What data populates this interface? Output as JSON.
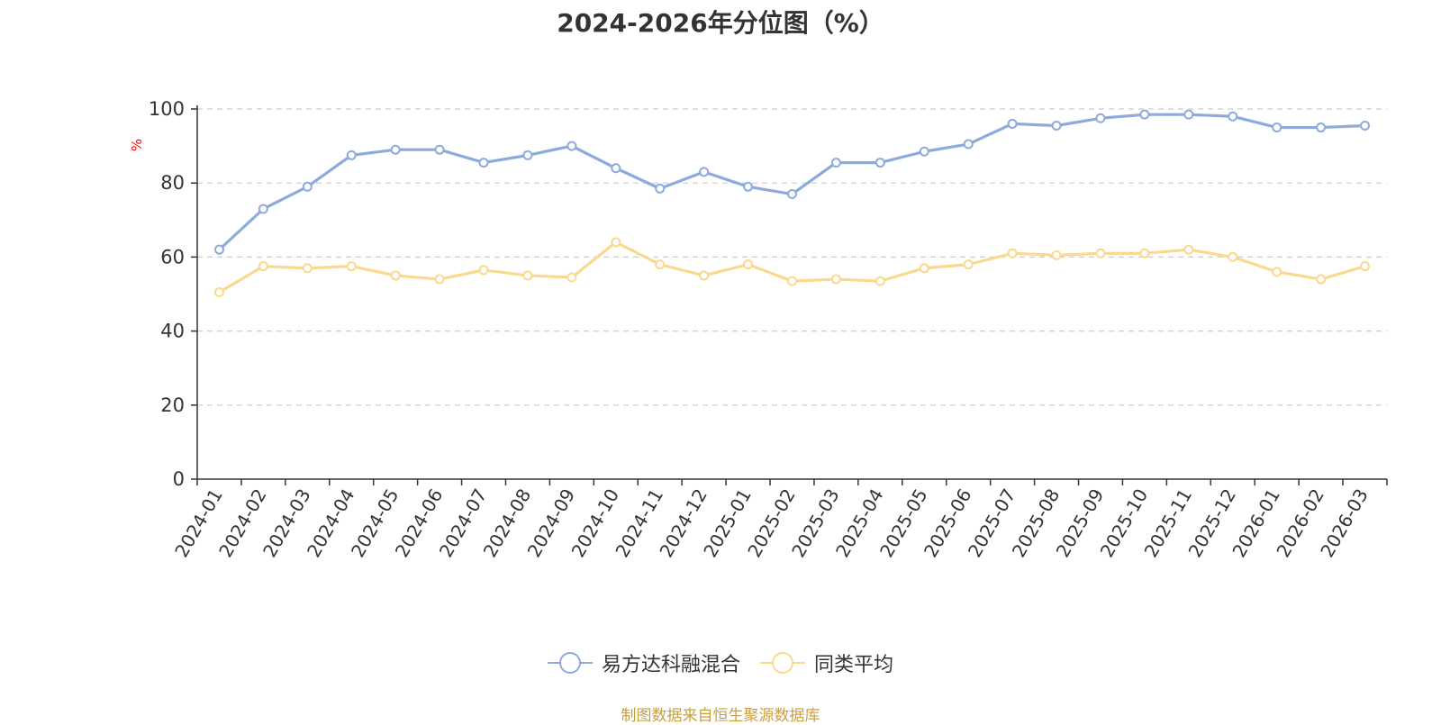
{
  "chart_data": {
    "type": "line",
    "title": "2024-2026年分位图（%）",
    "y_unit": "%",
    "ylim": [
      0,
      100
    ],
    "y_ticks": [
      0,
      20,
      40,
      60,
      80,
      100
    ],
    "grid": true,
    "legend_position": "bottom",
    "categories": [
      "2024-01",
      "2024-02",
      "2024-03",
      "2024-04",
      "2024-05",
      "2024-06",
      "2024-07",
      "2024-08",
      "2024-09",
      "2024-10",
      "2024-11",
      "2024-12",
      "2025-01",
      "2025-02",
      "2025-03",
      "2025-04",
      "2025-05",
      "2025-06",
      "2025-07",
      "2025-08",
      "2025-09",
      "2025-10",
      "2025-11",
      "2025-12",
      "2026-01",
      "2026-02",
      "2026-03"
    ],
    "series": [
      {
        "name": "易方达科融混合",
        "color": "#8eaadb",
        "values": [
          62,
          73,
          79,
          87.5,
          89,
          89,
          85.5,
          87.5,
          90,
          84,
          78.5,
          83,
          79,
          77,
          85.5,
          85.5,
          88.5,
          90.5,
          96,
          95.5,
          97.5,
          98.5,
          98.5,
          98,
          95,
          95,
          95.5
        ]
      },
      {
        "name": "同类平均",
        "color": "#fad88e",
        "values": [
          50.5,
          57.5,
          57,
          57.5,
          55,
          54,
          56.5,
          55,
          54.5,
          64,
          58,
          55,
          58,
          53.5,
          54,
          53.5,
          57,
          58,
          61,
          60.5,
          61,
          61,
          62,
          60,
          56,
          54,
          57.5
        ]
      }
    ]
  },
  "source_note": "制图数据来自恒生聚源数据库",
  "colors": {
    "axis": "#333333",
    "grid": "#cccccc",
    "unit": "#ff0000",
    "source": "#c8a040"
  }
}
